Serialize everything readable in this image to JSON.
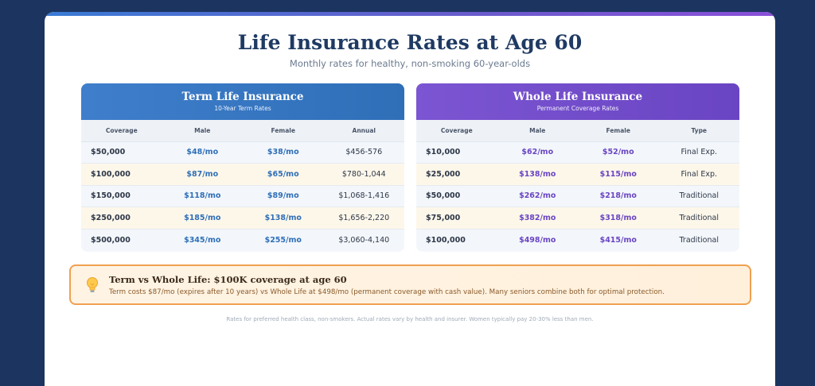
{
  "page": {
    "title": "Life Insurance Rates at Age 60",
    "subtitle": "Monthly rates for healthy, non-smoking 60-year-olds",
    "footnote": "Rates for preferred health class, non-smokers. Actual rates vary by health and insurer. Women typically pay 20-30% less than men."
  },
  "colors": {
    "background": "#1b3560",
    "term_accent": "#2f6fb8",
    "whole_accent": "#6a45c3",
    "callout_border": "#f0a050"
  },
  "term": {
    "title": "Term Life Insurance",
    "subtitle": "10-Year Term Rates",
    "headers": [
      "Coverage",
      "Male",
      "Female",
      "Annual"
    ],
    "rows": [
      [
        "$50,000",
        "$48/mo",
        "$38/mo",
        "$456-576"
      ],
      [
        "$100,000",
        "$87/mo",
        "$65/mo",
        "$780-1,044"
      ],
      [
        "$150,000",
        "$118/mo",
        "$89/mo",
        "$1,068-1,416"
      ],
      [
        "$250,000",
        "$185/mo",
        "$138/mo",
        "$1,656-2,220"
      ],
      [
        "$500,000",
        "$345/mo",
        "$255/mo",
        "$3,060-4,140"
      ]
    ]
  },
  "whole": {
    "title": "Whole Life Insurance",
    "subtitle": "Permanent Coverage Rates",
    "headers": [
      "Coverage",
      "Male",
      "Female",
      "Type"
    ],
    "rows": [
      [
        "$10,000",
        "$62/mo",
        "$52/mo",
        "Final Exp."
      ],
      [
        "$25,000",
        "$138/mo",
        "$115/mo",
        "Final Exp."
      ],
      [
        "$50,000",
        "$262/mo",
        "$218/mo",
        "Traditional"
      ],
      [
        "$75,000",
        "$382/mo",
        "$318/mo",
        "Traditional"
      ],
      [
        "$100,000",
        "$498/mo",
        "$415/mo",
        "Traditional"
      ]
    ]
  },
  "callout": {
    "icon": "lightbulb-icon",
    "title": "Term vs Whole Life: $100K coverage at age 60",
    "text": "Term costs $87/mo (expires after 10 years) vs Whole Life at $498/mo (permanent coverage with cash value). Many seniors combine both for optimal protection."
  }
}
